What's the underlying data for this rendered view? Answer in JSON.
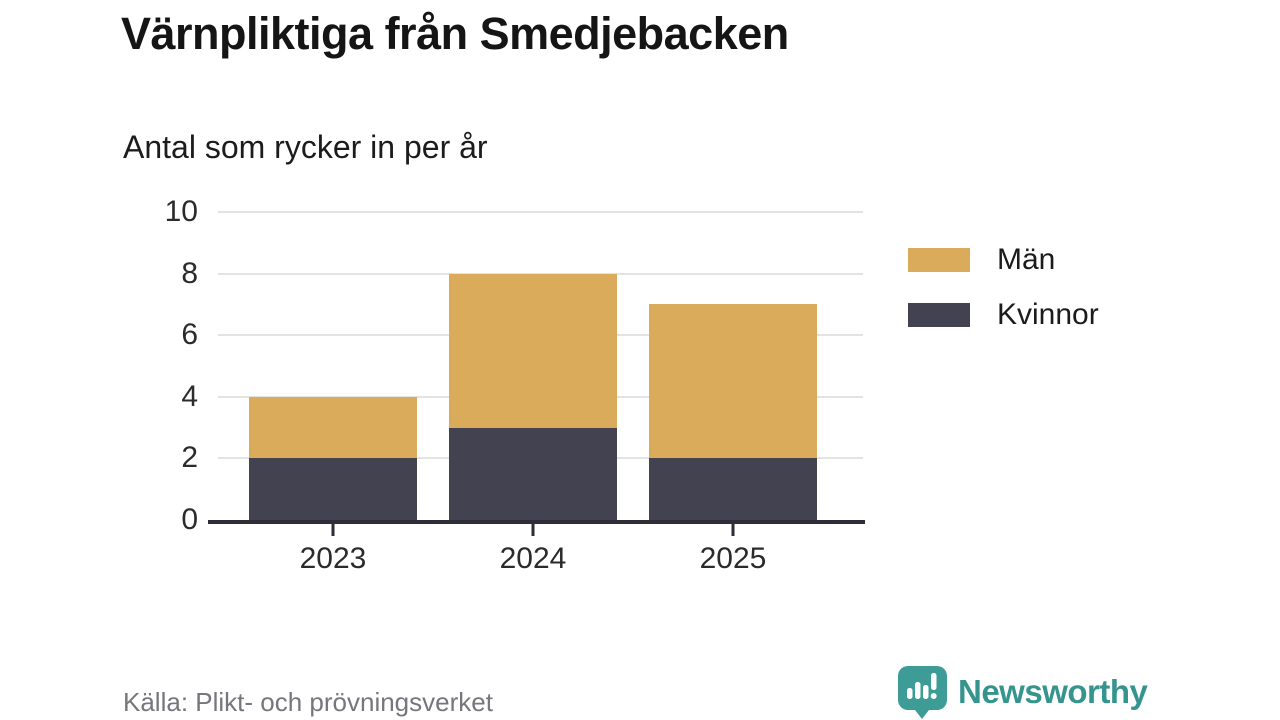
{
  "header": {
    "title": "Värnpliktiga från Smedjebacken",
    "subtitle": "Antal som rycker in per år"
  },
  "chart_data": {
    "type": "bar",
    "stacked": true,
    "title": "Värnpliktiga från Smedjebacken",
    "subtitle": "Antal som rycker in per år",
    "categories": [
      "2023",
      "2024",
      "2025"
    ],
    "series": [
      {
        "name": "Kvinnor",
        "color": "#434250",
        "values": [
          2,
          3,
          2
        ]
      },
      {
        "name": "Män",
        "color": "#d9ab5b",
        "values": [
          2,
          5,
          5
        ]
      }
    ],
    "totals": [
      4,
      8,
      7
    ],
    "stack_order": "bottom-to-top",
    "ylim": [
      0,
      10
    ],
    "yticks": [
      0,
      2,
      4,
      6,
      8,
      10
    ],
    "xlabel": "",
    "ylabel": "",
    "grid": "horizontal",
    "legend_position": "right",
    "legend": [
      {
        "label": "Män",
        "color": "#d9ab5b"
      },
      {
        "label": "Kvinnor",
        "color": "#434250"
      }
    ]
  },
  "footer": {
    "source": "Källa: Plikt- och prövningsverket",
    "brand": "Newsworthy",
    "brand_color": "#35948d"
  },
  "colors": {
    "men": "#d9ab5b",
    "women": "#434250",
    "gridline": "#e3e3e3",
    "axis": "#2e2c37",
    "background": "#ffffff"
  }
}
